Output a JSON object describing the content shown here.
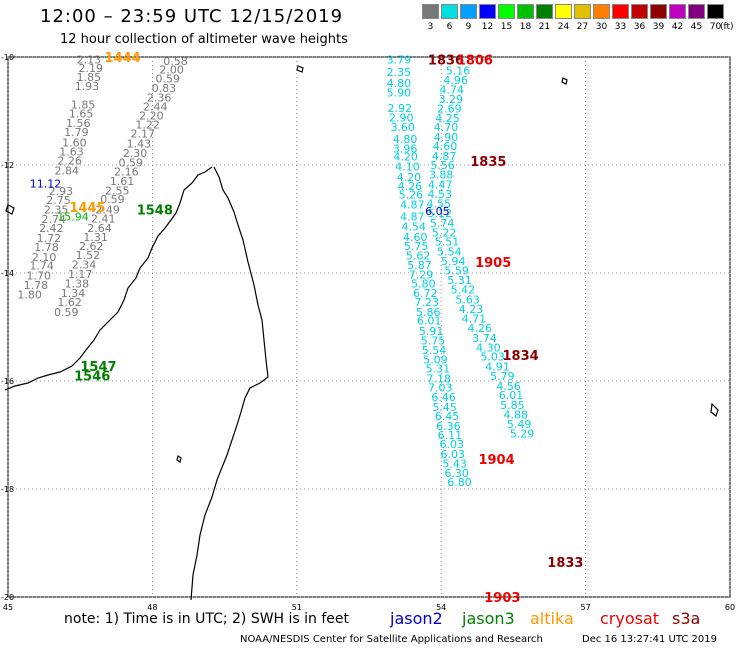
{
  "header": {
    "title": "12:00 – 23:59 UTC 12/15/2019",
    "subtitle": "12 hour collection of altimeter wave heights"
  },
  "legend": {
    "unit": "(ft)",
    "bins": [
      {
        "label": "3",
        "color": "#787878"
      },
      {
        "label": "6",
        "color": "#00e0e0"
      },
      {
        "label": "9",
        "color": "#00a0ff"
      },
      {
        "label": "12",
        "color": "#0000ff"
      },
      {
        "label": "15",
        "color": "#00ff00"
      },
      {
        "label": "18",
        "color": "#00c000"
      },
      {
        "label": "21",
        "color": "#008000"
      },
      {
        "label": "24",
        "color": "#ffff00"
      },
      {
        "label": "27",
        "color": "#e0c000"
      },
      {
        "label": "30",
        "color": "#ff8000"
      },
      {
        "label": "33",
        "color": "#ff0000"
      },
      {
        "label": "36",
        "color": "#c00000"
      },
      {
        "label": "39",
        "color": "#900000"
      },
      {
        "label": "42",
        "color": "#c000c0"
      },
      {
        "label": "45",
        "color": "#800080"
      },
      {
        "label": "70",
        "color": "#000000"
      }
    ]
  },
  "axes": {
    "lat_labels": [
      "-10",
      "-12",
      "-14",
      "-16",
      "-18",
      "-20"
    ],
    "lon_labels": [
      "45",
      "48",
      "51",
      "54",
      "57",
      "60"
    ]
  },
  "satellites": [
    {
      "name": "jason2",
      "color": "#0000cc"
    },
    {
      "name": "jason3",
      "color": "#008000"
    },
    {
      "name": "altika",
      "color": "#ff9900"
    },
    {
      "name": "cryosat",
      "color": "#ee0000"
    },
    {
      "name": "s3a",
      "color": "#8b0000"
    }
  ],
  "pass_times": [
    {
      "text": "1444",
      "color": "#ff9900",
      "lon": 47.38,
      "lat": -10.0
    },
    {
      "text": "1445",
      "color": "#ff9900",
      "lon": 46.65,
      "lat": -12.78
    },
    {
      "text": "1548",
      "color": "#008000",
      "lon": 48.05,
      "lat": -12.82
    },
    {
      "text": "1547",
      "color": "#008000",
      "lon": 46.88,
      "lat": -15.72
    },
    {
      "text": "1546",
      "color": "#008000",
      "lon": 46.75,
      "lat": -15.9
    },
    {
      "text": "1836",
      "color": "#8b0000",
      "lon": 54.1,
      "lat": -10.05
    },
    {
      "text": "1806",
      "color": "#ee0000",
      "lon": 54.7,
      "lat": -10.05
    },
    {
      "text": "1835",
      "color": "#8b0000",
      "lon": 54.98,
      "lat": -11.93
    },
    {
      "text": "1905",
      "color": "#ee0000",
      "lon": 55.08,
      "lat": -13.8
    },
    {
      "text": "1834",
      "color": "#8b0000",
      "lon": 55.65,
      "lat": -15.52
    },
    {
      "text": "1904",
      "color": "#ee0000",
      "lon": 55.15,
      "lat": -17.44
    },
    {
      "text": "1833",
      "color": "#8b0000",
      "lon": 56.58,
      "lat": -19.35
    },
    {
      "text": "1903",
      "color": "#ee0000",
      "lon": 55.27,
      "lat": -20.0
    }
  ],
  "tracks": [
    {
      "name": "altika-west",
      "color": "#787878",
      "points": [
        [
          "2.13",
          46.68,
          -10.05
        ],
        [
          "2.19",
          46.72,
          -10.2
        ],
        [
          "1.85",
          46.68,
          -10.37
        ],
        [
          "1.93",
          46.64,
          -10.54
        ],
        [
          "1.85",
          46.56,
          -10.88
        ],
        [
          "1.65",
          46.52,
          -11.05
        ],
        [
          "1.56",
          46.46,
          -11.22
        ],
        [
          "1.79",
          46.42,
          -11.39
        ],
        [
          "1.60",
          46.38,
          -11.58
        ],
        [
          "1.63",
          46.32,
          -11.75
        ],
        [
          "2.26",
          46.28,
          -11.92
        ],
        [
          "2.84",
          46.22,
          -12.1
        ],
        [
          "2.93",
          46.1,
          -12.48
        ],
        [
          "2.75",
          46.05,
          -12.65
        ],
        [
          "2.35",
          46.0,
          -12.82
        ],
        [
          "2.74",
          45.95,
          -13.0
        ],
        [
          "2.42",
          45.9,
          -13.17
        ],
        [
          "1.72",
          45.85,
          -13.35
        ],
        [
          "1.78",
          45.8,
          -13.52
        ],
        [
          "2.10",
          45.75,
          -13.7
        ],
        [
          "1.74",
          45.7,
          -13.86
        ],
        [
          "1.70",
          45.64,
          -14.05
        ],
        [
          "1.78",
          45.58,
          -14.22
        ],
        [
          "1.80",
          45.45,
          -14.4
        ]
      ]
    },
    {
      "name": "altika-east",
      "color": "#787878",
      "points": [
        [
          "0.58",
          48.48,
          -10.07
        ],
        [
          "2.00",
          48.4,
          -10.23
        ],
        [
          "0.59",
          48.32,
          -10.4
        ],
        [
          "0.83",
          48.24,
          -10.57
        ],
        [
          "2.36",
          48.14,
          -10.75
        ],
        [
          "2.44",
          48.06,
          -10.92
        ],
        [
          "2.20",
          47.98,
          -11.08
        ],
        [
          "1.22",
          47.9,
          -11.25
        ],
        [
          "2.17",
          47.8,
          -11.42
        ],
        [
          "1.43",
          47.72,
          -11.6
        ],
        [
          "2.30",
          47.64,
          -11.78
        ],
        [
          "0.59",
          47.55,
          -11.95
        ],
        [
          "2.16",
          47.46,
          -12.12
        ],
        [
          "1.61",
          47.37,
          -12.3
        ],
        [
          "2.55",
          47.27,
          -12.47
        ],
        [
          "0.59",
          47.17,
          -12.63
        ],
        [
          "2.49",
          47.07,
          -12.82
        ],
        [
          "2.41",
          46.98,
          -12.99
        ],
        [
          "2.64",
          46.9,
          -13.17
        ],
        [
          "1.31",
          46.82,
          -13.33
        ],
        [
          "2.62",
          46.73,
          -13.5
        ],
        [
          "1.52",
          46.66,
          -13.67
        ],
        [
          "2.34",
          46.58,
          -13.84
        ],
        [
          "1.17",
          46.5,
          -14.02
        ],
        [
          "1.38",
          46.43,
          -14.19
        ],
        [
          "1.34",
          46.35,
          -14.37
        ],
        [
          "1.62",
          46.28,
          -14.54
        ],
        [
          "0.59",
          46.21,
          -14.72
        ]
      ]
    },
    {
      "name": "jason3-track",
      "color": "#00d0e0",
      "points": [
        [
          "3.79",
          53.12,
          -10.05
        ],
        [
          "2.35",
          53.12,
          -10.28
        ],
        [
          "4.80",
          53.12,
          -10.48
        ],
        [
          "5.90",
          53.12,
          -10.66
        ],
        [
          "2.92",
          53.14,
          -10.94
        ],
        [
          "2.90",
          53.17,
          -11.12
        ],
        [
          "3.60",
          53.2,
          -11.3
        ],
        [
          "4.80",
          53.25,
          -11.52
        ],
        [
          "3.96",
          53.25,
          -11.69
        ],
        [
          "4.20",
          53.26,
          -11.84
        ],
        [
          "4.10",
          53.3,
          -12.03
        ],
        [
          "4.20",
          53.33,
          -12.22
        ],
        [
          "4.26",
          53.35,
          -12.39
        ],
        [
          "5.26",
          53.37,
          -12.55
        ],
        [
          "4.87",
          53.4,
          -12.73
        ],
        [
          "4.87",
          53.4,
          -12.95
        ],
        [
          "4.54",
          53.43,
          -13.14
        ],
        [
          "4.60",
          53.46,
          -13.33
        ],
        [
          "5.75",
          53.48,
          -13.5
        ],
        [
          "5.62",
          53.52,
          -13.68
        ],
        [
          "5.87",
          53.55,
          -13.85
        ],
        [
          "7.29",
          53.58,
          -14.03
        ],
        [
          "5.80",
          53.63,
          -14.19
        ],
        [
          "6.72",
          53.67,
          -14.37
        ],
        [
          "7.23",
          53.7,
          -14.54
        ],
        [
          "5.86",
          53.73,
          -14.72
        ],
        [
          "6.01",
          53.75,
          -14.88
        ],
        [
          "5.91",
          53.79,
          -15.07
        ],
        [
          "5.75",
          53.83,
          -15.25
        ],
        [
          "5.54",
          53.85,
          -15.43
        ],
        [
          "5.09",
          53.88,
          -15.6
        ],
        [
          "5.31",
          53.93,
          -15.77
        ],
        [
          "7.18",
          53.95,
          -15.95
        ],
        [
          "7.03",
          53.98,
          -16.12
        ],
        [
          "6.46",
          54.05,
          -16.3
        ],
        [
          "5.45",
          54.07,
          -16.48
        ],
        [
          "6.45",
          54.12,
          -16.65
        ],
        [
          "6.36",
          54.15,
          -16.83
        ],
        [
          "6.11",
          54.18,
          -17.0
        ],
        [
          "6.03",
          54.22,
          -17.17
        ],
        [
          "6.03",
          54.24,
          -17.35
        ],
        [
          "5.43",
          54.28,
          -17.53
        ],
        [
          "6.30",
          54.32,
          -17.7
        ],
        [
          "6.80",
          54.38,
          -17.87
        ]
      ]
    },
    {
      "name": "s3a-track",
      "color": "#00d0e0",
      "points": [
        [
          "5.16",
          54.35,
          -10.25
        ],
        [
          "4.96",
          54.3,
          -10.43
        ],
        [
          "4.74",
          54.22,
          -10.6
        ],
        [
          "3.29",
          54.2,
          -10.78
        ],
        [
          "2.69",
          54.17,
          -10.95
        ],
        [
          "4.25",
          54.13,
          -11.13
        ],
        [
          "4.70",
          54.1,
          -11.3
        ],
        [
          "4.90",
          54.1,
          -11.48
        ],
        [
          "4.60",
          54.08,
          -11.65
        ],
        [
          "4.87",
          54.06,
          -11.83
        ],
        [
          "5.56",
          54.03,
          -12.0
        ],
        [
          "3.88",
          54.0,
          -12.18
        ],
        [
          "4.47",
          53.98,
          -12.36
        ],
        [
          "4.53",
          53.97,
          -12.54
        ],
        [
          "4.55",
          53.95,
          -12.71
        ],
        [
          "5.12",
          53.97,
          -12.89
        ],
        [
          "5.74",
          54.02,
          -13.07
        ],
        [
          "5.22",
          54.06,
          -13.25
        ],
        [
          "5.51",
          54.12,
          -13.42
        ],
        [
          "5.54",
          54.17,
          -13.6
        ],
        [
          "5.94",
          54.25,
          -13.78
        ],
        [
          "5.59",
          54.32,
          -13.95
        ],
        [
          "5.31",
          54.38,
          -14.13
        ],
        [
          "5.42",
          54.45,
          -14.31
        ],
        [
          "5.63",
          54.55,
          -14.49
        ],
        [
          "4.23",
          54.62,
          -14.67
        ],
        [
          "4.71",
          54.68,
          -14.84
        ],
        [
          "4.26",
          54.8,
          -15.02
        ],
        [
          "3.74",
          54.9,
          -15.2
        ],
        [
          "4.30",
          54.98,
          -15.38
        ],
        [
          "5.03",
          55.07,
          -15.55
        ],
        [
          "4.91",
          55.17,
          -15.73
        ],
        [
          "5.79",
          55.27,
          -15.91
        ],
        [
          "4.56",
          55.4,
          -16.09
        ],
        [
          "6.01",
          55.45,
          -16.26
        ],
        [
          "5.85",
          55.48,
          -16.44
        ],
        [
          "4.88",
          55.55,
          -16.62
        ],
        [
          "5.49",
          55.62,
          -16.8
        ],
        [
          "5.29",
          55.68,
          -16.97
        ]
      ]
    },
    {
      "name": "jason2-track",
      "color": "#0000cc",
      "points": [
        [
          "11.12",
          45.78,
          -12.34
        ],
        [
          "6.05",
          53.92,
          -12.85
        ]
      ]
    },
    {
      "name": "jason3-green",
      "color": "#00c000",
      "points": [
        [
          "15.94",
          46.35,
          -12.95
        ]
      ]
    }
  ],
  "footer": {
    "note": "note: 1) Time is in UTC; 2) SWH is in feet",
    "credit": "NOAA/NESDIS Center for Satellite Applications and Research",
    "date": "Dec 16 13:27:41 UTC 2019"
  }
}
